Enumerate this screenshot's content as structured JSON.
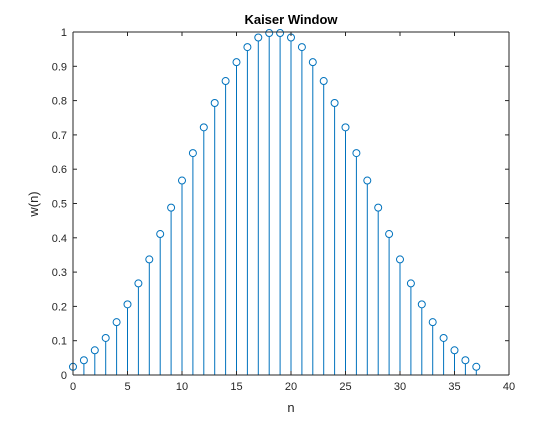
{
  "chart_data": {
    "type": "stem",
    "title": "Kaiser Window",
    "xlabel": "n",
    "ylabel": "w(n)",
    "xlim": [
      0,
      40
    ],
    "ylim": [
      0,
      1
    ],
    "xticks": [
      0,
      5,
      10,
      15,
      20,
      25,
      30,
      35,
      40
    ],
    "xtick_labels": [
      "0",
      "5",
      "10",
      "15",
      "20",
      "25",
      "30",
      "35",
      "40"
    ],
    "yticks": [
      0,
      0.1,
      0.2,
      0.3,
      0.4,
      0.5,
      0.6,
      0.7,
      0.8,
      0.9,
      1
    ],
    "ytick_labels": [
      "0",
      "0.1",
      "0.2",
      "0.3",
      "0.4",
      "0.5",
      "0.6",
      "0.7",
      "0.8",
      "0.9",
      "1"
    ],
    "grid": false,
    "color": "#0072BD",
    "x": [
      0,
      1,
      2,
      3,
      4,
      5,
      6,
      7,
      8,
      9,
      10,
      11,
      12,
      13,
      14,
      15,
      16,
      17,
      18,
      19,
      20,
      21,
      22,
      23,
      24,
      25,
      26,
      27,
      28,
      29,
      30,
      31,
      32,
      33,
      34,
      35,
      36,
      37
    ],
    "values": [
      0.024,
      0.043,
      0.072,
      0.108,
      0.154,
      0.206,
      0.267,
      0.337,
      0.411,
      0.488,
      0.567,
      0.647,
      0.722,
      0.793,
      0.857,
      0.912,
      0.956,
      0.984,
      0.997,
      0.997,
      0.984,
      0.956,
      0.912,
      0.857,
      0.793,
      0.722,
      0.647,
      0.567,
      0.488,
      0.411,
      0.337,
      0.267,
      0.206,
      0.154,
      0.108,
      0.072,
      0.043,
      0.024
    ]
  }
}
